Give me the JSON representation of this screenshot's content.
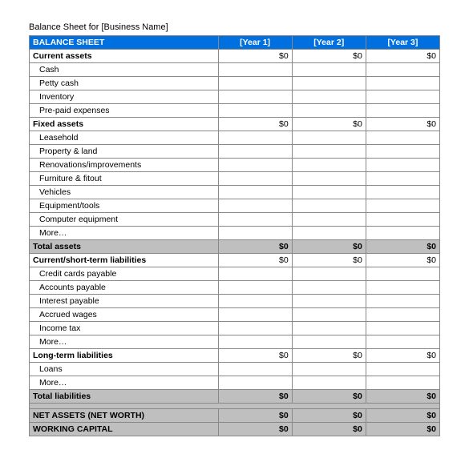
{
  "title": "Balance Sheet for [Business Name]",
  "header": {
    "main": "BALANCE SHEET",
    "years": [
      "[Year 1]",
      "[Year 2]",
      "[Year 3]"
    ]
  },
  "colors": {
    "header_bg": "#0070e0",
    "header_fg": "#ffffff",
    "total_bg": "#bfbfbf",
    "border": "#888888"
  },
  "rows": [
    {
      "type": "section",
      "label": "Current assets",
      "vals": [
        "$0",
        "$0",
        "$0"
      ]
    },
    {
      "type": "item",
      "label": "Cash",
      "vals": [
        "",
        "",
        ""
      ]
    },
    {
      "type": "item",
      "label": "Petty cash",
      "vals": [
        "",
        "",
        ""
      ]
    },
    {
      "type": "item",
      "label": "Inventory",
      "vals": [
        "",
        "",
        ""
      ]
    },
    {
      "type": "item",
      "label": "Pre-paid expenses",
      "vals": [
        "",
        "",
        ""
      ]
    },
    {
      "type": "section",
      "label": "Fixed assets",
      "vals": [
        "$0",
        "$0",
        "$0"
      ]
    },
    {
      "type": "item",
      "label": "Leasehold",
      "vals": [
        "",
        "",
        ""
      ]
    },
    {
      "type": "item",
      "label": "Property & land",
      "vals": [
        "",
        "",
        ""
      ]
    },
    {
      "type": "item",
      "label": "Renovations/improvements",
      "vals": [
        "",
        "",
        ""
      ]
    },
    {
      "type": "item",
      "label": "Furniture & fitout",
      "vals": [
        "",
        "",
        ""
      ]
    },
    {
      "type": "item",
      "label": "Vehicles",
      "vals": [
        "",
        "",
        ""
      ]
    },
    {
      "type": "item",
      "label": "Equipment/tools",
      "vals": [
        "",
        "",
        ""
      ]
    },
    {
      "type": "item",
      "label": "Computer equipment",
      "vals": [
        "",
        "",
        ""
      ]
    },
    {
      "type": "item",
      "label": "More…",
      "vals": [
        "",
        "",
        ""
      ]
    },
    {
      "type": "total",
      "label": "Total assets",
      "vals": [
        "$0",
        "$0",
        "$0"
      ]
    },
    {
      "type": "section",
      "label": "Current/short-term liabilities",
      "vals": [
        "$0",
        "$0",
        "$0"
      ]
    },
    {
      "type": "item",
      "label": "Credit cards payable",
      "vals": [
        "",
        "",
        ""
      ]
    },
    {
      "type": "item",
      "label": "Accounts payable",
      "vals": [
        "",
        "",
        ""
      ]
    },
    {
      "type": "item",
      "label": "Interest payable",
      "vals": [
        "",
        "",
        ""
      ]
    },
    {
      "type": "item",
      "label": "Accrued wages",
      "vals": [
        "",
        "",
        ""
      ]
    },
    {
      "type": "item",
      "label": "Income tax",
      "vals": [
        "",
        "",
        ""
      ]
    },
    {
      "type": "item",
      "label": "More…",
      "vals": [
        "",
        "",
        ""
      ]
    },
    {
      "type": "section",
      "label": "Long-term liabilities",
      "vals": [
        "$0",
        "$0",
        "$0"
      ]
    },
    {
      "type": "item",
      "label": "Loans",
      "vals": [
        "",
        "",
        ""
      ]
    },
    {
      "type": "item",
      "label": "More…",
      "vals": [
        "",
        "",
        ""
      ]
    },
    {
      "type": "total",
      "label": "Total liabilities",
      "vals": [
        "$0",
        "$0",
        "$0"
      ]
    },
    {
      "type": "spacer"
    },
    {
      "type": "net",
      "label": "NET ASSETS (NET WORTH)",
      "vals": [
        "$0",
        "$0",
        "$0"
      ]
    },
    {
      "type": "net",
      "label": "WORKING CAPITAL",
      "vals": [
        "$0",
        "$0",
        "$0"
      ]
    }
  ]
}
